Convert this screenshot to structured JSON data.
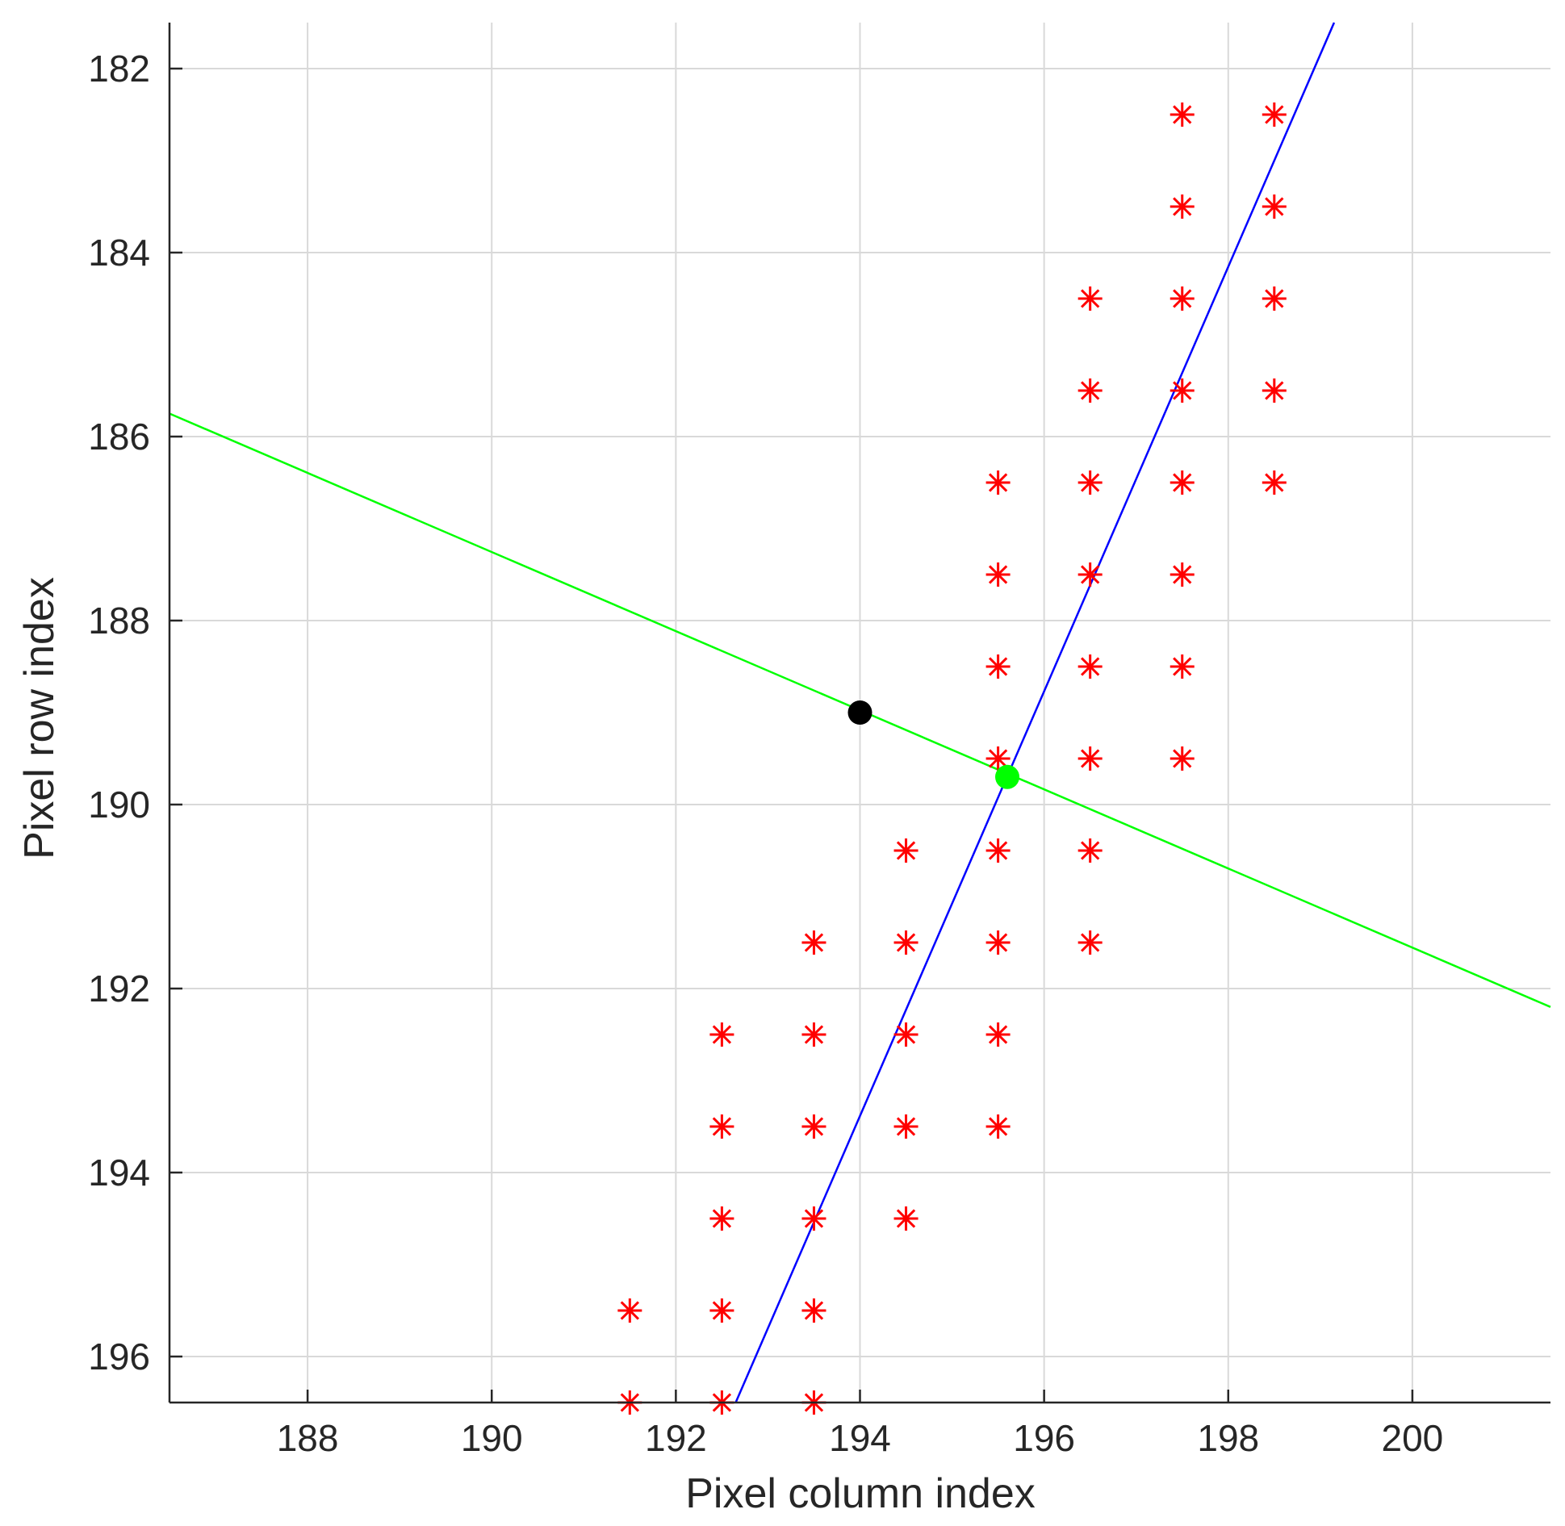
{
  "chart_data": {
    "type": "scatter",
    "title": "",
    "xlabel": "Pixel column index",
    "ylabel": "Pixel row index",
    "xlim": [
      186.5,
      201.5
    ],
    "ylim": [
      181.5,
      196.5
    ],
    "y_reversed": true,
    "grid": true,
    "x_ticks": [
      188,
      190,
      192,
      194,
      196,
      198,
      200
    ],
    "y_ticks": [
      182,
      184,
      186,
      188,
      190,
      192,
      194,
      196
    ],
    "x_tick_labels": [
      "188",
      "190",
      "192",
      "194",
      "196",
      "198",
      "200"
    ],
    "y_tick_labels": [
      "182",
      "184",
      "186",
      "188",
      "190",
      "192",
      "194",
      "196"
    ],
    "colors": {
      "edge_points": "#ff0000",
      "blue_line": "#0000ff",
      "green_line": "#00ff00",
      "black_point": "#000000",
      "green_point": "#00ff00"
    },
    "series": [
      {
        "marker": "asterisk",
        "color": "#ff0000",
        "points": [
          [
            197.5,
            182.5
          ],
          [
            198.5,
            182.5
          ],
          [
            197.5,
            183.5
          ],
          [
            198.5,
            183.5
          ],
          [
            196.5,
            184.5
          ],
          [
            197.5,
            184.5
          ],
          [
            198.5,
            184.5
          ],
          [
            196.5,
            185.5
          ],
          [
            197.5,
            185.5
          ],
          [
            198.5,
            185.5
          ],
          [
            195.5,
            186.5
          ],
          [
            196.5,
            186.5
          ],
          [
            197.5,
            186.5
          ],
          [
            198.5,
            186.5
          ],
          [
            195.5,
            187.5
          ],
          [
            196.5,
            187.5
          ],
          [
            197.5,
            187.5
          ],
          [
            195.5,
            188.5
          ],
          [
            196.5,
            188.5
          ],
          [
            197.5,
            188.5
          ],
          [
            195.5,
            189.5
          ],
          [
            196.5,
            189.5
          ],
          [
            197.5,
            189.5
          ],
          [
            194.5,
            190.5
          ],
          [
            195.5,
            190.5
          ],
          [
            196.5,
            190.5
          ],
          [
            193.5,
            191.5
          ],
          [
            194.5,
            191.5
          ],
          [
            195.5,
            191.5
          ],
          [
            196.5,
            191.5
          ],
          [
            192.5,
            192.5
          ],
          [
            193.5,
            192.5
          ],
          [
            194.5,
            192.5
          ],
          [
            195.5,
            192.5
          ],
          [
            192.5,
            193.5
          ],
          [
            193.5,
            193.5
          ],
          [
            194.5,
            193.5
          ],
          [
            195.5,
            193.5
          ],
          [
            192.5,
            194.5
          ],
          [
            193.5,
            194.5
          ],
          [
            194.5,
            194.5
          ],
          [
            191.5,
            195.5
          ],
          [
            192.5,
            195.5
          ],
          [
            193.5,
            195.5
          ],
          [
            191.5,
            196.5
          ],
          [
            192.5,
            196.5
          ],
          [
            193.5,
            196.5
          ]
        ]
      },
      {
        "marker": "line",
        "color": "#0000ff",
        "points": [
          [
            192.65,
            196.5
          ],
          [
            199.15,
            181.5
          ]
        ]
      },
      {
        "marker": "line",
        "color": "#00ff00",
        "points": [
          [
            186.5,
            185.75
          ],
          [
            201.5,
            192.2
          ]
        ]
      },
      {
        "marker": "dot",
        "color": "#000000",
        "points": [
          [
            194.0,
            189.0
          ]
        ]
      },
      {
        "marker": "dot",
        "color": "#00ff00",
        "points": [
          [
            195.6,
            189.7
          ]
        ]
      }
    ]
  }
}
